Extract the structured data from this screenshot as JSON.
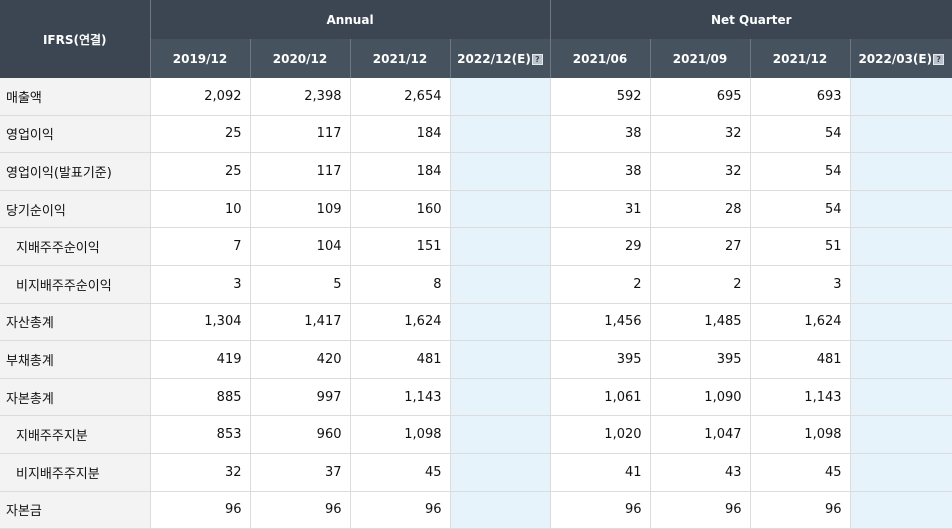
{
  "header": {
    "ifrs": "IFRS(연결)",
    "annual": "Annual",
    "net_quarter": "Net Quarter",
    "columns": [
      "2019/12",
      "2020/12",
      "2021/12",
      "2022/12(E)",
      "2021/06",
      "2021/09",
      "2021/12",
      "2022/03(E)"
    ],
    "help_glyph": "?"
  },
  "rows": [
    {
      "label": "매출액",
      "values": [
        "2,092",
        "2,398",
        "2,654",
        "",
        "592",
        "695",
        "693",
        ""
      ]
    },
    {
      "label": "영업이익",
      "values": [
        "25",
        "117",
        "184",
        "",
        "38",
        "32",
        "54",
        ""
      ]
    },
    {
      "label": "영업이익(발표기준)",
      "values": [
        "25",
        "117",
        "184",
        "",
        "38",
        "32",
        "54",
        ""
      ]
    },
    {
      "label": "당기순이익",
      "values": [
        "10",
        "109",
        "160",
        "",
        "31",
        "28",
        "54",
        ""
      ]
    },
    {
      "label": "지배주주순이익",
      "values": [
        "7",
        "104",
        "151",
        "",
        "29",
        "27",
        "51",
        ""
      ]
    },
    {
      "label": "비지배주주순이익",
      "values": [
        "3",
        "5",
        "8",
        "",
        "2",
        "2",
        "3",
        ""
      ]
    },
    {
      "label": "자산총계",
      "values": [
        "1,304",
        "1,417",
        "1,624",
        "",
        "1,456",
        "1,485",
        "1,624",
        ""
      ]
    },
    {
      "label": "부채총계",
      "values": [
        "419",
        "420",
        "481",
        "",
        "395",
        "395",
        "481",
        ""
      ]
    },
    {
      "label": "자본총계",
      "values": [
        "885",
        "997",
        "1,143",
        "",
        "1,061",
        "1,090",
        "1,143",
        ""
      ]
    },
    {
      "label": "지배주주지분",
      "values": [
        "853",
        "960",
        "1,098",
        "",
        "1,020",
        "1,047",
        "1,098",
        ""
      ]
    },
    {
      "label": "비지배주주지분",
      "values": [
        "32",
        "37",
        "45",
        "",
        "41",
        "43",
        "45",
        ""
      ]
    },
    {
      "label": "자본금",
      "values": [
        "96",
        "96",
        "96",
        "",
        "96",
        "96",
        "96",
        ""
      ]
    }
  ],
  "colors": {
    "header_dark": "#3b4652",
    "header_sub": "#46525e",
    "estimate_bg": "#e7f3fa",
    "label_bg": "#f3f3f3"
  }
}
